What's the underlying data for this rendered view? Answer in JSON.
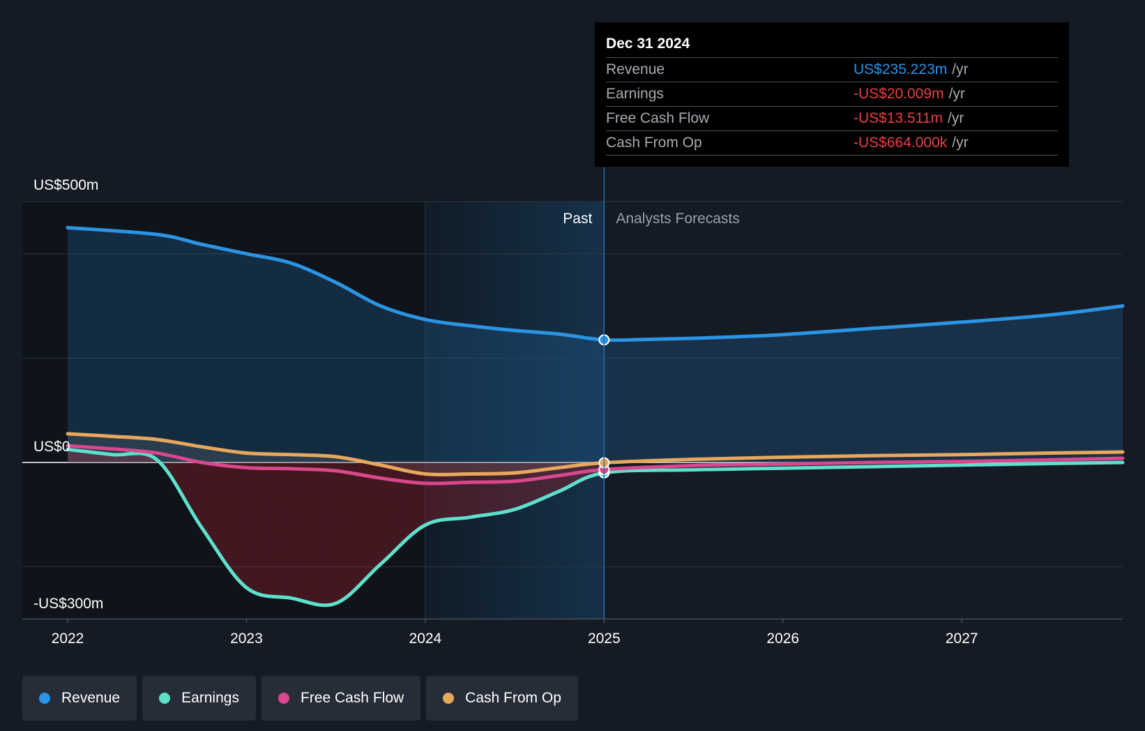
{
  "tooltip": {
    "date": "Dec 31 2024",
    "rows": [
      {
        "label": "Revenue",
        "value": "US$235.223m",
        "unit": "/yr",
        "color": "#2b94e4"
      },
      {
        "label": "Earnings",
        "value": "-US$20.009m",
        "unit": "/yr",
        "color": "#e84043"
      },
      {
        "label": "Free Cash Flow",
        "value": "-US$13.511m",
        "unit": "/yr",
        "color": "#e84043"
      },
      {
        "label": "Cash From Op",
        "value": "-US$664.000k",
        "unit": "/yr",
        "color": "#e84043"
      }
    ]
  },
  "legend": [
    {
      "label": "Revenue",
      "color": "#2b94e4"
    },
    {
      "label": "Earnings",
      "color": "#5fe0cd"
    },
    {
      "label": "Free Cash Flow",
      "color": "#d9478c"
    },
    {
      "label": "Cash From Op",
      "color": "#e8a85b"
    }
  ],
  "chart_data": {
    "type": "line",
    "x_ticks": [
      "2022",
      "2023",
      "2024",
      "2025",
      "2026",
      "2027"
    ],
    "y_tick_labels": [
      "US$500m",
      "US$0",
      "-US$300m"
    ],
    "ylim": [
      -300,
      500
    ],
    "xlim": [
      2022.0,
      2027.9
    ],
    "y_gridlines": [
      500,
      400,
      200,
      0,
      -200,
      -300
    ],
    "region_labels": {
      "past": "Past",
      "forecast": "Analysts Forecasts"
    },
    "divider_x": 2025.0,
    "highlight_start_x": 2024.0,
    "series": [
      {
        "name": "Revenue",
        "color": "#2b94e4",
        "x": [
          2022.0,
          2022.5,
          2022.75,
          2023.0,
          2023.25,
          2023.5,
          2023.75,
          2024.0,
          2024.25,
          2024.5,
          2024.75,
          2025.0,
          2025.25,
          2025.5,
          2025.75,
          2026.0,
          2026.5,
          2027.0,
          2027.5,
          2027.9
        ],
        "y": [
          450,
          437,
          418,
          400,
          382,
          345,
          300,
          274,
          262,
          253,
          246,
          235,
          236,
          238,
          241,
          245,
          257,
          269,
          283,
          300
        ]
      },
      {
        "name": "Earnings",
        "color": "#5fe0cd",
        "x": [
          2022.0,
          2022.25,
          2022.5,
          2022.75,
          2023.0,
          2023.25,
          2023.5,
          2023.75,
          2024.0,
          2024.25,
          2024.5,
          2024.75,
          2025.0,
          2025.5,
          2026.0,
          2026.5,
          2027.0,
          2027.5,
          2027.9
        ],
        "y": [
          25,
          15,
          5,
          -125,
          -240,
          -260,
          -270,
          -195,
          -120,
          -105,
          -90,
          -55,
          -20,
          -14,
          -11,
          -8,
          -5,
          -2,
          0
        ]
      },
      {
        "name": "Free Cash Flow",
        "color": "#d9478c",
        "x": [
          2022.0,
          2022.25,
          2022.5,
          2022.75,
          2023.0,
          2023.25,
          2023.5,
          2023.75,
          2024.0,
          2024.25,
          2024.5,
          2024.75,
          2025.0,
          2025.5,
          2026.0,
          2026.5,
          2027.0,
          2027.5,
          2027.9
        ],
        "y": [
          32,
          26,
          18,
          0,
          -10,
          -12,
          -16,
          -30,
          -40,
          -38,
          -36,
          -25,
          -13.5,
          -6,
          -3,
          0,
          2,
          5,
          8
        ]
      },
      {
        "name": "Cash From Op",
        "color": "#e8a85b",
        "x": [
          2022.0,
          2022.25,
          2022.5,
          2022.75,
          2023.0,
          2023.25,
          2023.5,
          2023.75,
          2024.0,
          2024.25,
          2024.5,
          2024.75,
          2025.0,
          2025.5,
          2026.0,
          2026.5,
          2027.0,
          2027.5,
          2027.9
        ],
        "y": [
          55,
          50,
          44,
          30,
          18,
          15,
          11,
          -5,
          -22,
          -22,
          -20,
          -10,
          -0.664,
          6,
          10,
          13,
          15,
          18,
          20
        ]
      }
    ]
  }
}
